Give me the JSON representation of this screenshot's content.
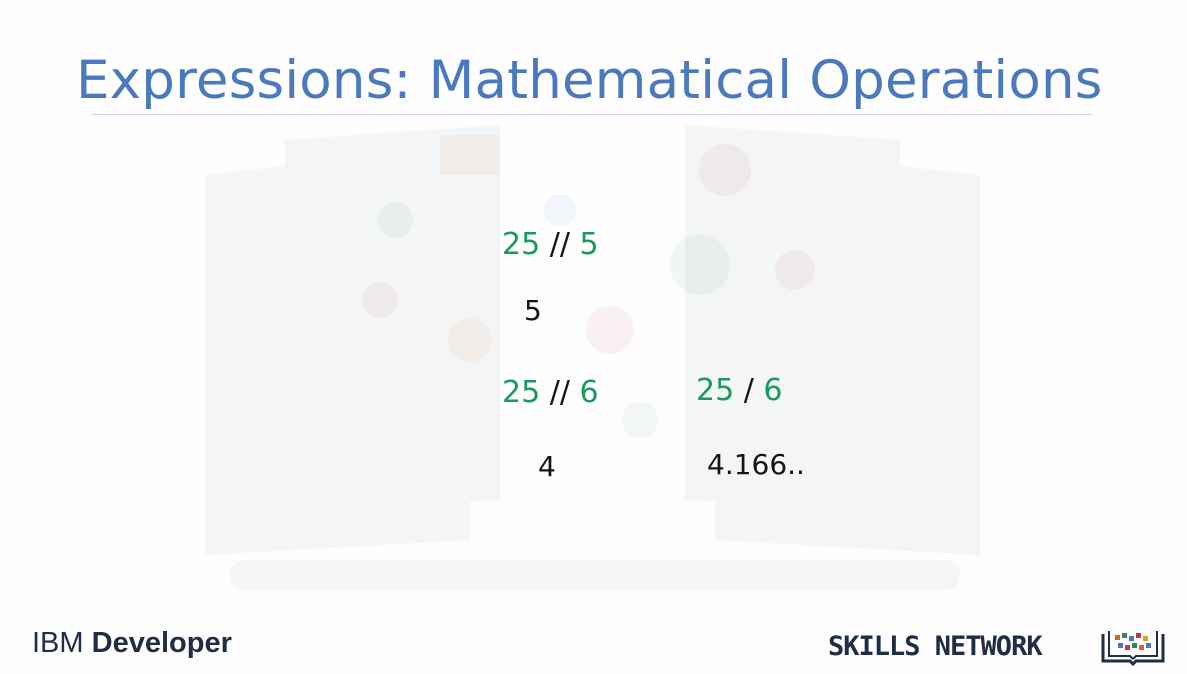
{
  "slide": {
    "title": "Expressions: Mathematical Operations"
  },
  "examples": [
    {
      "left": "25",
      "operator": "//",
      "right": "5",
      "result": "5"
    },
    {
      "left": "25",
      "operator": "//",
      "right": "6",
      "result": "4"
    },
    {
      "left": "25",
      "operator": "/",
      "right": "6",
      "result": "4.166.."
    }
  ],
  "footer": {
    "brand_prefix": "IBM",
    "brand_name": "Developer",
    "network_label": "SKILLS NETWORK",
    "logo_icon": "skills-network-book-icon"
  },
  "colors": {
    "title": "#4a79be",
    "number": "#1b9a5e",
    "operator": "#151515",
    "footer_text": "#1f2d45"
  }
}
